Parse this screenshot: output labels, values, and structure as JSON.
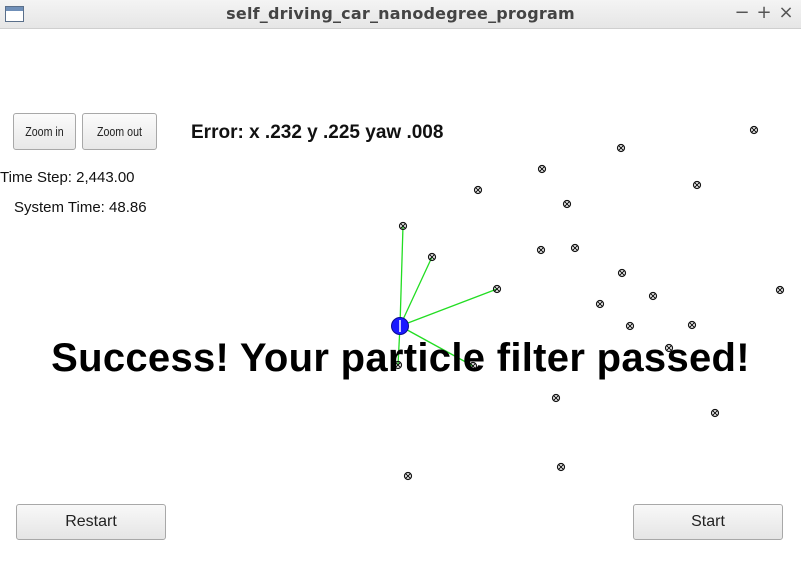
{
  "window": {
    "title": "self_driving_car_nanodegree_program",
    "min": "−",
    "max": "+",
    "close": "×"
  },
  "controls": {
    "zoom_in": "Zoom in",
    "zoom_out": "Zoom out",
    "restart": "Restart",
    "start": "Start"
  },
  "status": {
    "error": "Error: x .232 y .225 yaw .008",
    "time_step": "Time Step: 2,443.00",
    "system_time": "System Time: 48.86"
  },
  "result": {
    "message": "Success! Your particle filter passed!"
  },
  "scene": {
    "colors": {
      "car": "#1a1aff",
      "observation_lines": "#22dd22",
      "landmarks": "#111111"
    }
  }
}
